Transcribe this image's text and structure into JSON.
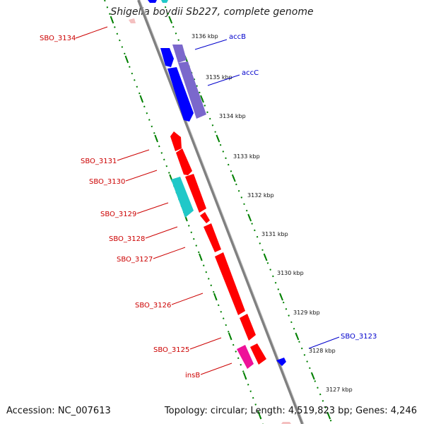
{
  "title": "Shigella boydii Sb227, complete genome",
  "accession_text": "Accession: NC_007613",
  "stats_text": "Topology: circular; Length: 4,519,823 bp; Genes: 4,246",
  "colors": {
    "backbone": "#808080",
    "ruler": "#008000",
    "forward_label": "#0000cc",
    "reverse_label": "#cc0000",
    "gene_blue": "#0000ff",
    "gene_purple": "#7b68cc",
    "gene_red": "#ff0000",
    "gene_cyan": "#20c8c8",
    "gene_magenta": "#ee1199"
  },
  "kbp_ticks": [
    {
      "text": "3136 kbp"
    },
    {
      "text": "3135 kbp"
    },
    {
      "text": "3134 kbp"
    },
    {
      "text": "3133 kbp"
    },
    {
      "text": "3132 kbp"
    },
    {
      "text": "3131 kbp"
    },
    {
      "text": "3130 kbp"
    },
    {
      "text": "3129 kbp"
    },
    {
      "text": "3128 kbp"
    },
    {
      "text": "3127 kbp"
    }
  ],
  "gene_labels": [
    {
      "text": "accB",
      "strand": "forward"
    },
    {
      "text": "accC",
      "strand": "forward"
    },
    {
      "text": "SBO_3123",
      "strand": "forward"
    },
    {
      "text": "SBO_3134",
      "strand": "reverse"
    },
    {
      "text": "SBO_3131",
      "strand": "reverse"
    },
    {
      "text": "SBO_3130",
      "strand": "reverse"
    },
    {
      "text": "SBO_3129",
      "strand": "reverse"
    },
    {
      "text": "SBO_3128",
      "strand": "reverse"
    },
    {
      "text": "SBO_3127",
      "strand": "reverse"
    },
    {
      "text": "SBO_3126",
      "strand": "reverse"
    },
    {
      "text": "SBO_3125",
      "strand": "reverse"
    },
    {
      "text": "insB",
      "strand": "reverse"
    }
  ]
}
